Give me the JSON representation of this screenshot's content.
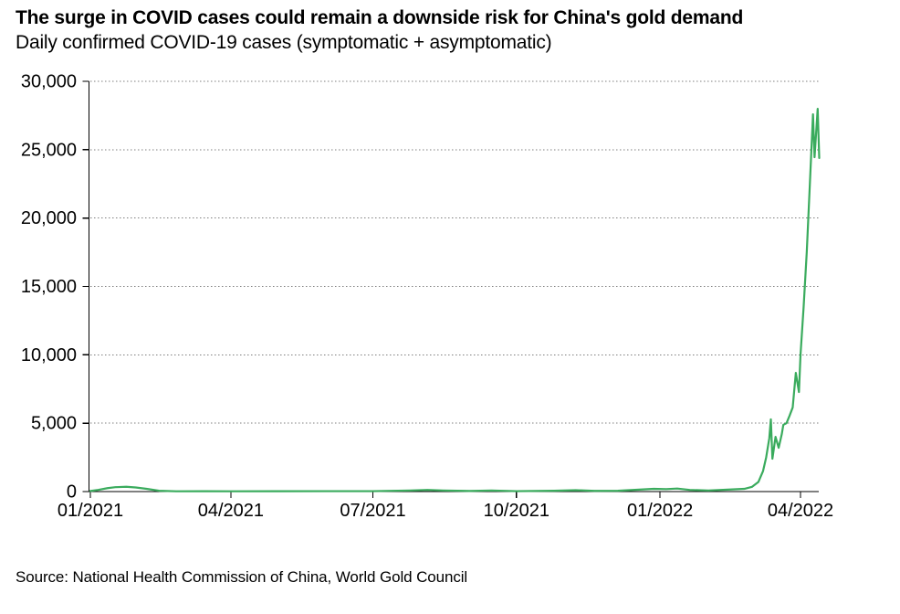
{
  "title": "The surge in COVID cases could remain a downside risk for China's gold demand",
  "subtitle": "Daily confirmed COVID-19 cases (symptomatic + asymptomatic)",
  "source": "Source: National Health Commission of China, World Gold Council",
  "colors": {
    "line": "#3aab5d",
    "grid": "#7f7f7f",
    "axis": "#000000",
    "text": "#000000",
    "background": "#ffffff"
  },
  "chart_data": {
    "type": "line",
    "title": "The surge in COVID cases could remain a downside risk for China's gold demand",
    "subtitle": "Daily confirmed COVID-19 cases (symptomatic + asymptomatic)",
    "xlabel": "",
    "ylabel": "",
    "ylim": [
      0,
      30000
    ],
    "yticks": [
      {
        "value": 0,
        "label": "0"
      },
      {
        "value": 5000,
        "label": "5,000"
      },
      {
        "value": 10000,
        "label": "10,000"
      },
      {
        "value": 15000,
        "label": "15,000"
      },
      {
        "value": 20000,
        "label": "20,000"
      },
      {
        "value": 25000,
        "label": "25,000"
      },
      {
        "value": 30000,
        "label": "30,000"
      }
    ],
    "xticks": [
      {
        "date": "2021-01-01",
        "label": "01/2021"
      },
      {
        "date": "2021-04-01",
        "label": "04/2021"
      },
      {
        "date": "2021-07-01",
        "label": "07/2021"
      },
      {
        "date": "2021-10-01",
        "label": "10/2021"
      },
      {
        "date": "2022-01-01",
        "label": "01/2022"
      },
      {
        "date": "2022-04-01",
        "label": "04/2022"
      }
    ],
    "x_range": [
      "2021-01-01",
      "2022-04-13"
    ],
    "grid": "horizontal-dotted",
    "legend": "none",
    "series": [
      {
        "name": "Daily confirmed COVID-19 cases (symptomatic + asymptomatic)",
        "color": "#3aab5d",
        "points": [
          [
            "2021-01-01",
            40
          ],
          [
            "2021-01-06",
            120
          ],
          [
            "2021-01-12",
            250
          ],
          [
            "2021-01-17",
            320
          ],
          [
            "2021-01-24",
            350
          ],
          [
            "2021-01-30",
            300
          ],
          [
            "2021-02-06",
            200
          ],
          [
            "2021-02-14",
            60
          ],
          [
            "2021-02-25",
            20
          ],
          [
            "2021-03-15",
            25
          ],
          [
            "2021-04-01",
            20
          ],
          [
            "2021-05-01",
            25
          ],
          [
            "2021-06-01",
            30
          ],
          [
            "2021-07-01",
            30
          ],
          [
            "2021-07-25",
            80
          ],
          [
            "2021-08-05",
            120
          ],
          [
            "2021-08-15",
            80
          ],
          [
            "2021-09-01",
            40
          ],
          [
            "2021-09-15",
            80
          ],
          [
            "2021-10-01",
            30
          ],
          [
            "2021-10-25",
            60
          ],
          [
            "2021-11-08",
            100
          ],
          [
            "2021-11-20",
            50
          ],
          [
            "2021-12-05",
            60
          ],
          [
            "2021-12-20",
            150
          ],
          [
            "2021-12-28",
            200
          ],
          [
            "2022-01-05",
            180
          ],
          [
            "2022-01-12",
            220
          ],
          [
            "2022-01-20",
            120
          ],
          [
            "2022-02-01",
            80
          ],
          [
            "2022-02-15",
            150
          ],
          [
            "2022-02-24",
            200
          ],
          [
            "2022-03-01",
            350
          ],
          [
            "2022-03-05",
            700
          ],
          [
            "2022-03-08",
            1500
          ],
          [
            "2022-03-10",
            2500
          ],
          [
            "2022-03-12",
            3900
          ],
          [
            "2022-03-13",
            5280
          ],
          [
            "2022-03-14",
            2400
          ],
          [
            "2022-03-16",
            4000
          ],
          [
            "2022-03-18",
            3200
          ],
          [
            "2022-03-20",
            4200
          ],
          [
            "2022-03-21",
            4880
          ],
          [
            "2022-03-23",
            5000
          ],
          [
            "2022-03-25",
            5550
          ],
          [
            "2022-03-27",
            6150
          ],
          [
            "2022-03-29",
            8680
          ],
          [
            "2022-03-31",
            7280
          ],
          [
            "2022-04-01",
            10000
          ],
          [
            "2022-04-03",
            13500
          ],
          [
            "2022-04-05",
            17500
          ],
          [
            "2022-04-07",
            22500
          ],
          [
            "2022-04-09",
            27590
          ],
          [
            "2022-04-10",
            24450
          ],
          [
            "2022-04-12",
            27990
          ],
          [
            "2022-04-13",
            24390
          ]
        ]
      }
    ]
  }
}
